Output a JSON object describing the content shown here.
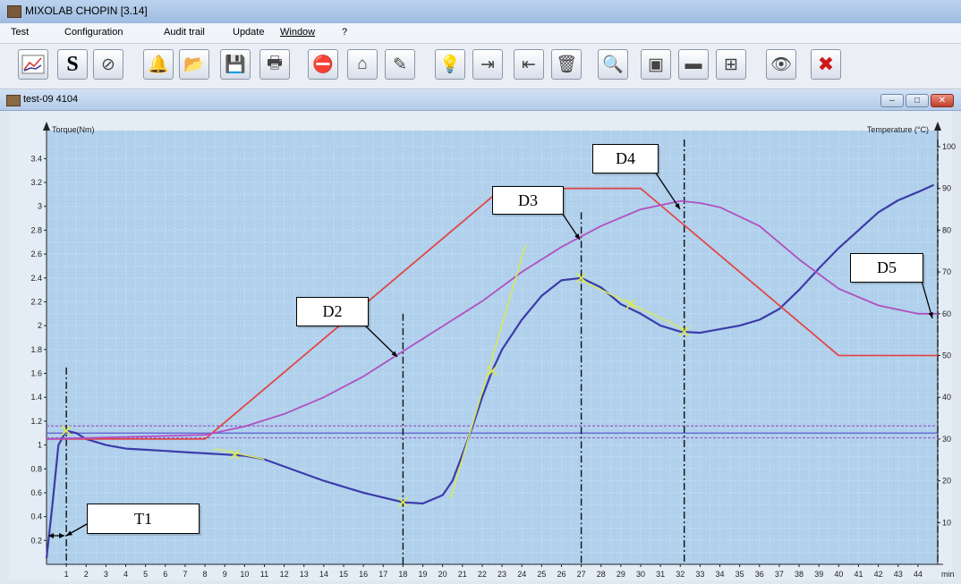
{
  "window": {
    "title": "MIXOLAB CHOPIN [3.14]"
  },
  "menu": [
    "Test",
    "Configuration",
    "Audit trail",
    "Update",
    "Window",
    "?"
  ],
  "toolbar": [
    {
      "icon": "graph-icon"
    },
    {
      "icon": "s-icon",
      "glyph": "S"
    },
    {
      "icon": "compass-icon",
      "glyph": "⊘"
    },
    {
      "icon": "bell-icon",
      "glyph": "🔔"
    },
    {
      "icon": "open-folder-icon",
      "glyph": "📂"
    },
    {
      "icon": "save-icon",
      "glyph": "💾"
    },
    {
      "icon": "print-icon",
      "glyph": "🖶"
    },
    {
      "icon": "stop-icon",
      "glyph": "⛔"
    },
    {
      "icon": "home-icon",
      "glyph": "⌂"
    },
    {
      "icon": "pen-icon",
      "glyph": "✎"
    },
    {
      "icon": "lightbulb-icon",
      "glyph": "💡"
    },
    {
      "icon": "export-icon",
      "glyph": "⇥"
    },
    {
      "icon": "import-icon",
      "glyph": "⇤"
    },
    {
      "icon": "trash-icon",
      "glyph": "🗑"
    },
    {
      "icon": "zoom-icon",
      "glyph": "🔍"
    },
    {
      "icon": "calibrate-icon",
      "glyph": "▣"
    },
    {
      "icon": "ruler-icon",
      "glyph": "▬"
    },
    {
      "icon": "overlay-icon",
      "glyph": "⊞"
    },
    {
      "icon": "eye-icon",
      "glyph": "👁"
    },
    {
      "icon": "close-red-icon",
      "glyph": "✖"
    }
  ],
  "child_window": {
    "title": "test-09 4104"
  },
  "annotations": [
    "T1",
    "D2",
    "D3",
    "D4",
    "D5"
  ],
  "colors": {
    "torque": "#3c3ca8",
    "temp_set": "#e04848",
    "dough_temp": "#b050c0",
    "fit": "#d8e85a",
    "bg": "#b0d0ec"
  },
  "chart_data": {
    "type": "line",
    "xlabel": "min",
    "ylabel_left": "Torque(Nm)",
    "ylabel_right": "Temperature   (°C)",
    "x_ticks": [
      1,
      2,
      3,
      4,
      5,
      6,
      7,
      8,
      9,
      10,
      11,
      12,
      13,
      14,
      15,
      16,
      17,
      18,
      19,
      20,
      21,
      22,
      23,
      24,
      25,
      26,
      27,
      28,
      29,
      30,
      31,
      32,
      33,
      34,
      35,
      36,
      37,
      38,
      39,
      40,
      41,
      42,
      43,
      44
    ],
    "y_ticks_left": [
      "0.2",
      "0.4",
      "0.6",
      "0.8",
      "1",
      "1.2",
      "1.4",
      "1.6",
      "1.8",
      "2",
      "2.2",
      "2.4",
      "2.6",
      "2.8",
      "3",
      "3.2",
      "3.4"
    ],
    "y_ticks_right": [
      "10",
      "20",
      "30",
      "40",
      "50",
      "60",
      "70",
      "80",
      "90",
      "100"
    ],
    "xlim": [
      0,
      45
    ],
    "ylim_left": [
      0,
      3.5
    ],
    "ylim_right": [
      0,
      100
    ],
    "series": [
      {
        "key": "torque",
        "axis": "left",
        "x": [
          0,
          0.3,
          0.6,
          1,
          1.5,
          2,
          3,
          4,
          5,
          6,
          7,
          8,
          9,
          10,
          11,
          12,
          13,
          14,
          15,
          16,
          17,
          18,
          19,
          20,
          20.5,
          21,
          21.5,
          22,
          22.5,
          23,
          24,
          25,
          26,
          27,
          28,
          29,
          30,
          31,
          32,
          33,
          34,
          35,
          36,
          37,
          38,
          39,
          40,
          41,
          42,
          43,
          44,
          44.8
        ],
        "y": [
          0.05,
          0.5,
          1.0,
          1.12,
          1.1,
          1.05,
          1.0,
          0.97,
          0.96,
          0.95,
          0.94,
          0.93,
          0.92,
          0.91,
          0.88,
          0.82,
          0.76,
          0.7,
          0.65,
          0.6,
          0.56,
          0.52,
          0.51,
          0.58,
          0.7,
          0.92,
          1.15,
          1.4,
          1.62,
          1.8,
          2.05,
          2.25,
          2.38,
          2.4,
          2.32,
          2.18,
          2.1,
          2.0,
          1.95,
          1.94,
          1.97,
          2.0,
          2.05,
          2.14,
          2.3,
          2.48,
          2.65,
          2.8,
          2.95,
          3.05,
          3.12,
          3.18
        ]
      },
      {
        "key": "temp_set",
        "axis": "right",
        "x": [
          0,
          8,
          23,
          30,
          40,
          45
        ],
        "y": [
          30,
          30,
          90,
          90,
          50,
          50
        ]
      },
      {
        "key": "dough_temp",
        "axis": "right",
        "x": [
          0,
          4,
          8,
          10,
          12,
          14,
          16,
          18,
          20,
          22,
          24,
          26,
          28,
          30,
          32,
          33,
          34,
          36,
          38,
          40,
          42,
          44,
          45
        ],
        "y": [
          30,
          30.5,
          31,
          33,
          36,
          40,
          45,
          51,
          57,
          63,
          70,
          76,
          81,
          85,
          87,
          86.5,
          85.5,
          81,
          73,
          66,
          62,
          60,
          60
        ]
      },
      {
        "key": "fit",
        "axis": "left",
        "x": [
          20.4,
          24.2
        ],
        "y": [
          0.55,
          2.68
        ]
      }
    ],
    "markers": [
      {
        "x": 1,
        "y": 1.12
      },
      {
        "x": 9.5,
        "y": 0.92
      },
      {
        "x": 18,
        "y": 0.52
      },
      {
        "x": 22.5,
        "y": 1.62
      },
      {
        "x": 27,
        "y": 2.4
      },
      {
        "x": 29.5,
        "y": 2.18
      },
      {
        "x": 32.2,
        "y": 1.95
      }
    ],
    "vlines": [
      1,
      18,
      27,
      32.2,
      45
    ],
    "hlines": [
      1.06,
      1.1,
      1.16
    ]
  }
}
